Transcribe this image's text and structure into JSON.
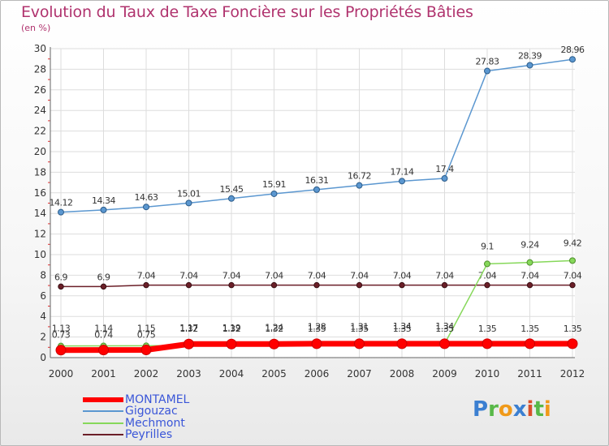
{
  "header": {
    "title": "Evolution du Taux de Taxe Foncière sur les Propriétés Bâties",
    "unit": "(en %)"
  },
  "logo": {
    "text": "Proxiti"
  },
  "chart_data": {
    "type": "line",
    "title": "Evolution du Taux de Taxe Foncière sur les Propriétés Bâties",
    "ylabel": "(en %)",
    "xlabel": "",
    "ylim": [
      0,
      30
    ],
    "yticks": [
      0,
      2,
      4,
      6,
      8,
      10,
      12,
      14,
      16,
      18,
      20,
      22,
      24,
      26,
      28,
      30
    ],
    "grid": true,
    "legend_position": "bottom-left",
    "x": [
      "2000",
      "2001",
      "2002",
      "2003",
      "2004",
      "2005",
      "2006",
      "2007",
      "2008",
      "2009",
      "2010",
      "2011",
      "2012"
    ],
    "series": [
      {
        "name": "Gigouzac",
        "color": "#5b97d0",
        "values": [
          14.12,
          14.34,
          14.63,
          15.01,
          15.45,
          15.91,
          16.31,
          16.72,
          17.14,
          17.4,
          27.83,
          28.39,
          28.96
        ],
        "labels": [
          "14.12",
          "14.34",
          "14.63",
          "15.01",
          "15.45",
          "15.91",
          "16.31",
          "16.72",
          "17.14",
          "17.4",
          "27.83",
          "28.39",
          "28.96"
        ]
      },
      {
        "name": "Peyrilles",
        "color": "#6b1f28",
        "values": [
          6.9,
          6.9,
          7.04,
          7.04,
          7.04,
          7.04,
          7.04,
          7.04,
          7.04,
          7.04,
          7.04,
          7.04,
          7.04
        ],
        "labels": [
          "6.9",
          "6.9",
          "7.04",
          "7.04",
          "7.04",
          "7.04",
          "7.04",
          "7.04",
          "7.04",
          "7.04",
          "7.04",
          "7.04",
          "7.04"
        ]
      },
      {
        "name": "Mechmont",
        "color": "#86d85a",
        "values": [
          1.13,
          1.14,
          1.15,
          1.17,
          1.19,
          1.24,
          1.28,
          1.31,
          1.34,
          1.34,
          9.1,
          9.24,
          9.42
        ],
        "labels": [
          "1.13",
          "1.14",
          "1.15",
          "1.17",
          "1.19",
          "1.24",
          "1.28",
          "1.31",
          "1.34",
          "1.34",
          "9.1",
          "9.24",
          "9.42"
        ]
      },
      {
        "name": "MONTAMEL",
        "color": "#ff0000",
        "values": [
          0.73,
          0.74,
          0.75,
          1.32,
          1.32,
          1.32,
          1.35,
          1.35,
          1.35,
          1.35,
          1.35,
          1.35,
          1.35
        ],
        "labels": [
          "0.73",
          "0.74",
          "0.75",
          "1.32",
          "1.32",
          "1.32",
          "1.35",
          "1.35",
          "1.35",
          "1.35",
          "1.35",
          "1.35",
          "1.35"
        ]
      }
    ],
    "legend_order": [
      "MONTAMEL",
      "Gigouzac",
      "Mechmont",
      "Peyrilles"
    ]
  }
}
